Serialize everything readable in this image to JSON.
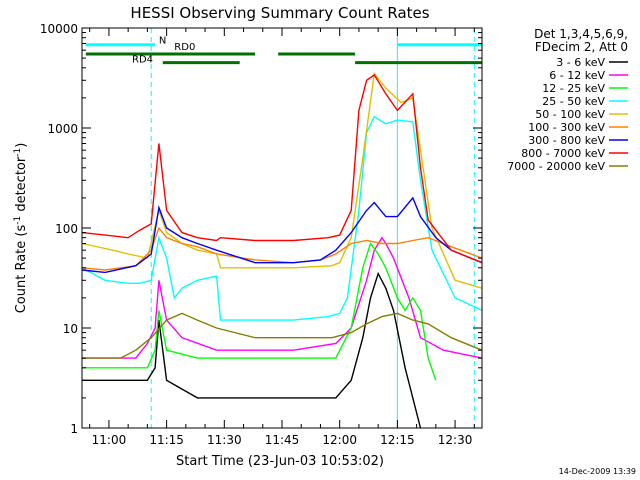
{
  "chart_data": {
    "type": "line",
    "title": "HESSI Observing Summary Count Rates",
    "xlabel": "Start Time (23-Jun-03 10:53:02)",
    "ylabel_main": "Count Rate (s",
    "ylabel_sup1": "-1",
    "ylabel_mid": " detector",
    "ylabel_sup2": "-1",
    "ylabel_end": ")",
    "yscale": "log",
    "ylim": [
      1,
      10000
    ],
    "xlim": [
      0,
      104
    ],
    "x_unit": "minutes after 10:53:02",
    "xticks": [
      {
        "x": 7,
        "label": "11:00"
      },
      {
        "x": 22,
        "label": "11:15"
      },
      {
        "x": 37,
        "label": "11:30"
      },
      {
        "x": 52,
        "label": "11:45"
      },
      {
        "x": 67,
        "label": "12:00"
      },
      {
        "x": 82,
        "label": "12:15"
      },
      {
        "x": 97,
        "label": "12:30"
      }
    ],
    "yticks": [
      {
        "y": 1,
        "label": "1"
      },
      {
        "y": 10,
        "label": "10"
      },
      {
        "y": 100,
        "label": "100"
      },
      {
        "y": 1000,
        "label": "1000"
      },
      {
        "y": 10000,
        "label": "10000"
      }
    ],
    "legend_header": [
      "Det 1,3,4,5,6,9,",
      "FDecim 2, Att 0"
    ],
    "legend_position": "right",
    "series": [
      {
        "name": "3 - 6 keV",
        "color": "#000000",
        "points": [
          [
            0,
            3
          ],
          [
            17,
            3
          ],
          [
            19,
            4
          ],
          [
            20,
            12
          ],
          [
            22,
            3
          ],
          [
            30,
            2
          ],
          [
            40,
            2
          ],
          [
            55,
            2
          ],
          [
            66,
            2
          ],
          [
            70,
            3
          ],
          [
            73,
            8
          ],
          [
            75,
            20
          ],
          [
            77,
            35
          ],
          [
            79,
            25
          ],
          [
            81,
            15
          ],
          [
            84,
            4
          ],
          [
            86,
            2
          ],
          [
            88,
            1
          ]
        ]
      },
      {
        "name": "6 - 12 keV",
        "color": "#ff00ff",
        "points": [
          [
            0,
            5
          ],
          [
            14,
            5
          ],
          [
            17,
            7
          ],
          [
            19,
            10
          ],
          [
            20,
            30
          ],
          [
            22,
            12
          ],
          [
            26,
            8
          ],
          [
            35,
            6
          ],
          [
            45,
            6
          ],
          [
            55,
            6
          ],
          [
            66,
            7
          ],
          [
            70,
            10
          ],
          [
            74,
            30
          ],
          [
            76,
            60
          ],
          [
            78,
            80
          ],
          [
            79,
            70
          ],
          [
            81,
            50
          ],
          [
            85,
            20
          ],
          [
            88,
            8
          ],
          [
            94,
            6
          ],
          [
            104,
            5
          ]
        ]
      },
      {
        "name": "12 - 25 keV",
        "color": "#00ff00",
        "points": [
          [
            0,
            4
          ],
          [
            17,
            4
          ],
          [
            19,
            6
          ],
          [
            20,
            15
          ],
          [
            22,
            6
          ],
          [
            30,
            5
          ],
          [
            40,
            5
          ],
          [
            55,
            5
          ],
          [
            66,
            5
          ],
          [
            70,
            10
          ],
          [
            73,
            40
          ],
          [
            75,
            70
          ],
          [
            77,
            55
          ],
          [
            79,
            40
          ],
          [
            82,
            20
          ],
          [
            84,
            15
          ],
          [
            86,
            20
          ],
          [
            88,
            15
          ],
          [
            90,
            5
          ],
          [
            92,
            3
          ]
        ]
      },
      {
        "name": "25 - 50 keV",
        "color": "#00ffff",
        "points": [
          [
            0,
            40
          ],
          [
            6,
            30
          ],
          [
            12,
            28
          ],
          [
            15,
            28
          ],
          [
            18,
            30
          ],
          [
            20,
            80
          ],
          [
            22,
            50
          ],
          [
            24,
            20
          ],
          [
            26,
            25
          ],
          [
            30,
            30
          ],
          [
            35,
            33
          ],
          [
            36,
            12
          ],
          [
            45,
            12
          ],
          [
            55,
            12
          ],
          [
            64,
            13
          ],
          [
            67,
            14
          ],
          [
            69,
            20
          ],
          [
            72,
            150
          ],
          [
            74,
            900
          ],
          [
            76,
            1300
          ],
          [
            79,
            1100
          ],
          [
            82,
            1200
          ],
          [
            86,
            1150
          ],
          [
            88,
            300
          ],
          [
            91,
            60
          ],
          [
            97,
            20
          ],
          [
            104,
            15
          ]
        ]
      },
      {
        "name": "50 - 100 keV",
        "color": "#e0c000",
        "points": [
          [
            0,
            70
          ],
          [
            8,
            60
          ],
          [
            12,
            55
          ],
          [
            17,
            50
          ],
          [
            20,
            150
          ],
          [
            22,
            90
          ],
          [
            26,
            70
          ],
          [
            30,
            60
          ],
          [
            35,
            55
          ],
          [
            36,
            40
          ],
          [
            45,
            40
          ],
          [
            55,
            40
          ],
          [
            65,
            42
          ],
          [
            67,
            45
          ],
          [
            70,
            80
          ],
          [
            73,
            500
          ],
          [
            76,
            3500
          ],
          [
            79,
            2500
          ],
          [
            83,
            1800
          ],
          [
            86,
            2000
          ],
          [
            88,
            600
          ],
          [
            91,
            100
          ],
          [
            97,
            30
          ],
          [
            104,
            25
          ]
        ]
      },
      {
        "name": "100 - 300 keV",
        "color": "#ff8000",
        "points": [
          [
            0,
            40
          ],
          [
            6,
            38
          ],
          [
            14,
            42
          ],
          [
            18,
            60
          ],
          [
            20,
            100
          ],
          [
            22,
            80
          ],
          [
            26,
            70
          ],
          [
            30,
            65
          ],
          [
            35,
            55
          ],
          [
            45,
            48
          ],
          [
            55,
            45
          ],
          [
            62,
            48
          ],
          [
            66,
            55
          ],
          [
            70,
            70
          ],
          [
            74,
            75
          ],
          [
            78,
            70
          ],
          [
            82,
            70
          ],
          [
            86,
            75
          ],
          [
            90,
            80
          ],
          [
            96,
            65
          ],
          [
            104,
            50
          ]
        ]
      },
      {
        "name": "300 - 800 keV",
        "color": "#0000ff",
        "points": [
          [
            0,
            38
          ],
          [
            6,
            36
          ],
          [
            14,
            42
          ],
          [
            18,
            55
          ],
          [
            20,
            160
          ],
          [
            22,
            100
          ],
          [
            26,
            80
          ],
          [
            30,
            70
          ],
          [
            35,
            60
          ],
          [
            45,
            45
          ],
          [
            55,
            45
          ],
          [
            62,
            48
          ],
          [
            66,
            60
          ],
          [
            70,
            90
          ],
          [
            74,
            150
          ],
          [
            76,
            180
          ],
          [
            79,
            130
          ],
          [
            82,
            130
          ],
          [
            86,
            200
          ],
          [
            88,
            130
          ],
          [
            92,
            80
          ],
          [
            96,
            60
          ],
          [
            104,
            45
          ]
        ]
      },
      {
        "name": "800 - 7000 keV",
        "color": "#ff0000",
        "points": [
          [
            0,
            90
          ],
          [
            6,
            85
          ],
          [
            12,
            80
          ],
          [
            15,
            95
          ],
          [
            18,
            110
          ],
          [
            20,
            700
          ],
          [
            22,
            150
          ],
          [
            26,
            90
          ],
          [
            30,
            80
          ],
          [
            35,
            75
          ],
          [
            36,
            80
          ],
          [
            45,
            75
          ],
          [
            55,
            75
          ],
          [
            64,
            80
          ],
          [
            67,
            85
          ],
          [
            70,
            150
          ],
          [
            72,
            1500
          ],
          [
            74,
            3000
          ],
          [
            76,
            3400
          ],
          [
            79,
            2200
          ],
          [
            82,
            1500
          ],
          [
            86,
            2200
          ],
          [
            88,
            400
          ],
          [
            90,
            120
          ],
          [
            96,
            60
          ],
          [
            104,
            45
          ]
        ]
      },
      {
        "name": "7000 - 20000 keV",
        "color": "#808000",
        "points": [
          [
            0,
            5
          ],
          [
            10,
            5
          ],
          [
            14,
            6
          ],
          [
            18,
            8
          ],
          [
            22,
            12
          ],
          [
            26,
            14
          ],
          [
            30,
            12
          ],
          [
            35,
            10
          ],
          [
            45,
            8
          ],
          [
            55,
            8
          ],
          [
            65,
            8
          ],
          [
            70,
            9
          ],
          [
            74,
            11
          ],
          [
            78,
            13
          ],
          [
            82,
            14
          ],
          [
            86,
            12
          ],
          [
            90,
            11
          ],
          [
            96,
            8
          ],
          [
            104,
            6
          ]
        ]
      }
    ],
    "annotations": [
      {
        "text": "N",
        "x": 20,
        "y": 7000,
        "color": "#00ffff"
      },
      {
        "text": "RD0",
        "x": 24,
        "y": 6000,
        "color": "#007000"
      },
      {
        "text": "RD4",
        "x": 13,
        "y": 4500,
        "color": "#007000"
      }
    ],
    "state_bars": [
      {
        "name": "Night",
        "color": "#00ffff",
        "level": 6800,
        "segments": [
          [
            1,
            19
          ],
          [
            82,
            104
          ]
        ]
      },
      {
        "name": "RD0",
        "color": "#007000",
        "level": 5500,
        "segments": [
          [
            1,
            45
          ],
          [
            51,
            71
          ]
        ]
      },
      {
        "name": "RD4",
        "color": "#007000",
        "level": 4500,
        "segments": [
          [
            21,
            41
          ],
          [
            71,
            104
          ]
        ]
      }
    ],
    "vlines": [
      {
        "x": 0,
        "style": "solid",
        "color": "#00ffff"
      },
      {
        "x": 18,
        "style": "dashed",
        "color": "#00ffff"
      },
      {
        "x": 82,
        "style": "solid",
        "color": "#00ffff"
      },
      {
        "x": 102,
        "style": "dashed",
        "color": "#00ffff"
      }
    ],
    "footer_timestamp": "14-Dec-2009 13:39"
  }
}
